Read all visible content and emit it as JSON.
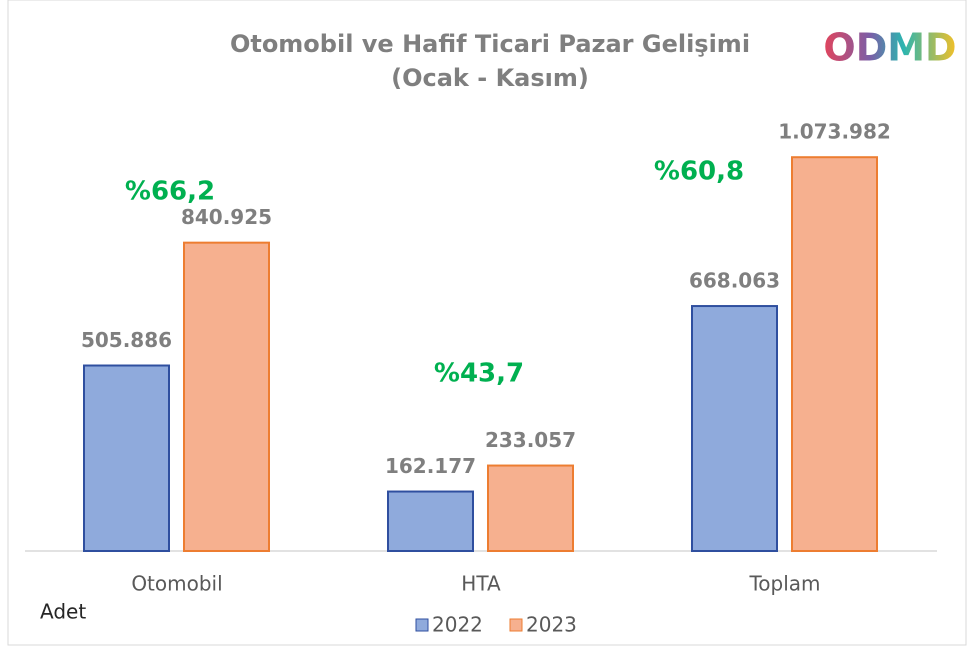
{
  "chart_data": {
    "type": "bar",
    "title": "Otomobil ve Hafif Ticari Pazar Gelişimi",
    "subtitle": "(Ocak - Kasım)",
    "logo": "ODMD",
    "y_label": "Adet",
    "categories": [
      "Otomobil",
      "HTA",
      "Toplam"
    ],
    "series": [
      {
        "name": "2022",
        "color": "#8faadc",
        "values": [
          505886,
          162177,
          668063
        ],
        "value_labels": [
          "505.886",
          "162.177",
          "668.063"
        ]
      },
      {
        "name": "2023",
        "color": "#f6b08f",
        "values": [
          840925,
          233057,
          1073982
        ],
        "value_labels": [
          "840.925",
          "233.057",
          "1.073.982"
        ]
      }
    ],
    "annotations": [
      {
        "text": "%66,2"
      },
      {
        "text": "%43,7"
      },
      {
        "text": "%60,8"
      }
    ],
    "annotation_color": "#00b050",
    "ylim": [
      0,
      1200000
    ],
    "legend": "bottom"
  }
}
